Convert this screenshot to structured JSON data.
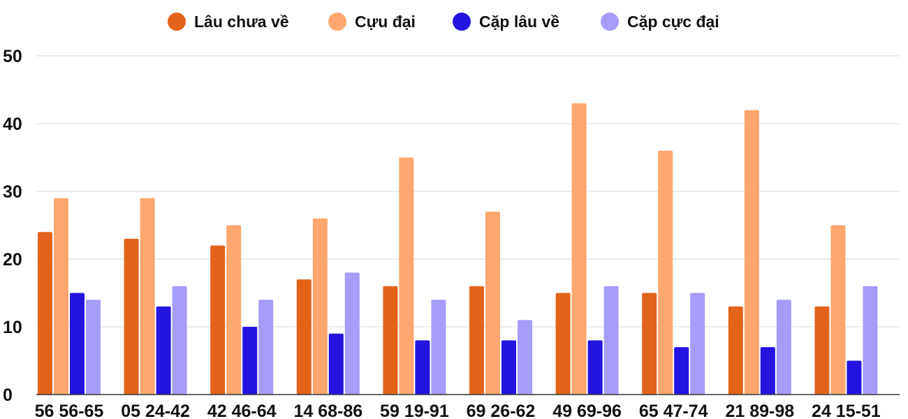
{
  "chart_data": {
    "type": "bar",
    "title": "",
    "xlabel": "",
    "ylabel": "",
    "ylim": [
      0,
      50
    ],
    "yticks": [
      0,
      10,
      20,
      30,
      40,
      50
    ],
    "grid": true,
    "legend_position": "top-center",
    "categories": [
      "56 56-65",
      "05 24-42",
      "42 46-64",
      "14 68-86",
      "59 19-91",
      "69 26-62",
      "49 69-96",
      "65 47-74",
      "21 89-98",
      "24 15-51"
    ],
    "series": [
      {
        "name": "Lâu chưa về",
        "color": "#e3631a",
        "values": [
          24,
          23,
          22,
          17,
          16,
          16,
          15,
          15,
          13,
          13
        ]
      },
      {
        "name": "Cựu đại",
        "color": "#ffa76e",
        "values": [
          29,
          29,
          25,
          26,
          35,
          27,
          43,
          36,
          42,
          25
        ]
      },
      {
        "name": "Cặp lâu về",
        "color": "#2514e0",
        "values": [
          15,
          13,
          10,
          9,
          8,
          8,
          8,
          7,
          7,
          5
        ]
      },
      {
        "name": "Cặp cực đại",
        "color": "#a69cfa",
        "values": [
          14,
          16,
          14,
          18,
          14,
          11,
          16,
          15,
          14,
          16
        ]
      }
    ]
  }
}
